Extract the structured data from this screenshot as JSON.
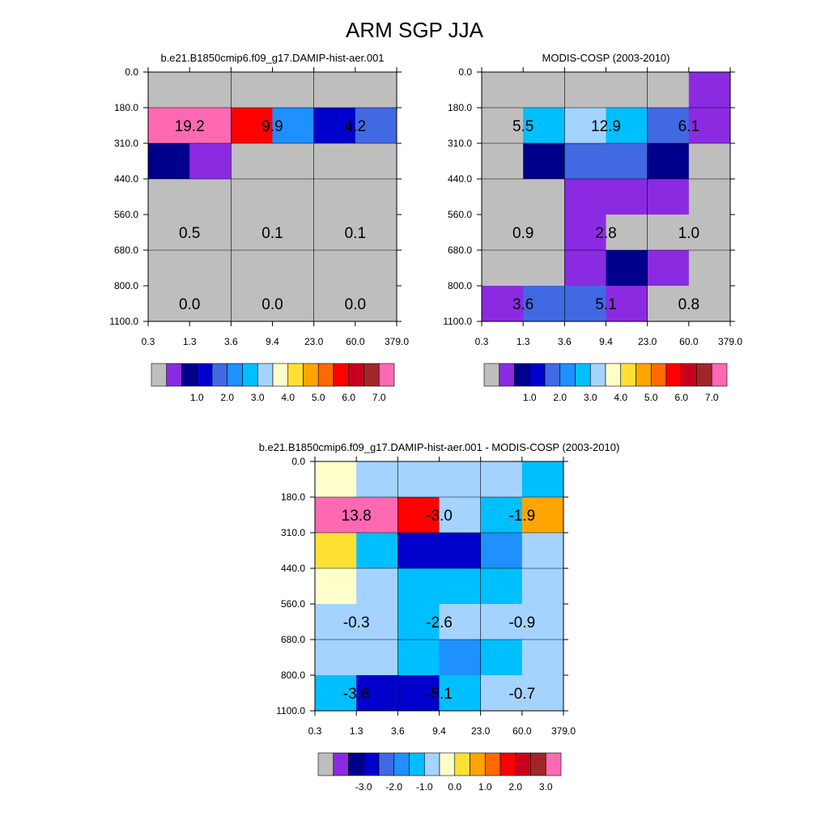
{
  "figure_title": "ARM SGP JJA",
  "colors": {
    "abs_scale": [
      "#bebebe",
      "#8a2be2",
      "#00008b",
      "#0000cd",
      "#4169e1",
      "#1e90ff",
      "#00bfff",
      "#a4d3ff",
      "#ffffcc",
      "#ffe135",
      "#ffa500",
      "#ff6a00",
      "#ff0000",
      "#c8001e",
      "#a0262a",
      "#ff69b4"
    ],
    "diff_scale": [
      "#bebebe",
      "#8a2be2",
      "#00008b",
      "#0000cd",
      "#4169e1",
      "#1e90ff",
      "#00bfff",
      "#a4d3ff",
      "#ffffcc",
      "#ffe135",
      "#ffa500",
      "#ff6a00",
      "#ff0000",
      "#c8001e",
      "#a0262a",
      "#ff69b4"
    ]
  },
  "chart_data": [
    {
      "type": "heatmap",
      "id": "model",
      "title": "b.e21.B1850cmip6.f09_g17.DAMIP-hist-aer.001",
      "x_ticks": [
        "0.3",
        "1.3",
        "3.6",
        "9.4",
        "23.0",
        "60.0",
        "379.0"
      ],
      "y_ticks": [
        "0.0",
        "180.0",
        "310.0",
        "440.0",
        "560.0",
        "680.0",
        "800.0",
        "1100.0"
      ],
      "cell_color_index": [
        [
          0,
          0,
          0,
          0,
          0,
          0
        ],
        [
          15,
          15,
          12,
          5,
          3,
          4
        ],
        [
          2,
          1,
          0,
          0,
          0,
          0
        ],
        [
          0,
          0,
          0,
          0,
          0,
          0
        ],
        [
          0,
          0,
          0,
          0,
          0,
          0
        ],
        [
          0,
          0,
          0,
          0,
          0,
          0
        ],
        [
          0,
          0,
          0,
          0,
          0,
          0
        ]
      ],
      "annotations": [
        {
          "text": "19.2",
          "row": 1,
          "col": 0.5
        },
        {
          "text": "9.9",
          "row": 1,
          "col": 2.5
        },
        {
          "text": "4.2",
          "row": 1,
          "col": 4.5
        },
        {
          "text": "0.5",
          "row": 4,
          "col": 0.5
        },
        {
          "text": "0.1",
          "row": 4,
          "col": 2.5
        },
        {
          "text": "0.1",
          "row": 4,
          "col": 4.5
        },
        {
          "text": "0.0",
          "row": 6,
          "col": 0.5
        },
        {
          "text": "0.0",
          "row": 6,
          "col": 2.5
        },
        {
          "text": "0.0",
          "row": 6,
          "col": 4.5
        }
      ],
      "colorbar_labels": [
        "1.0",
        "2.0",
        "3.0",
        "4.0",
        "5.0",
        "6.0",
        "7.0"
      ]
    },
    {
      "type": "heatmap",
      "id": "obs",
      "title": "MODIS-COSP (2003-2010)",
      "x_ticks": [
        "0.3",
        "1.3",
        "3.6",
        "9.4",
        "23.0",
        "60.0",
        "379.0"
      ],
      "y_ticks": [
        "0.0",
        "180.0",
        "310.0",
        "440.0",
        "560.0",
        "680.0",
        "800.0",
        "1100.0"
      ],
      "cell_color_index": [
        [
          0,
          0,
          0,
          0,
          0,
          1
        ],
        [
          0,
          6,
          7,
          6,
          4,
          1
        ],
        [
          0,
          2,
          4,
          4,
          2,
          0
        ],
        [
          0,
          0,
          1,
          1,
          1,
          0
        ],
        [
          0,
          0,
          1,
          0,
          0,
          0
        ],
        [
          0,
          0,
          1,
          2,
          1,
          0
        ],
        [
          1,
          4,
          4,
          1,
          0,
          0
        ]
      ],
      "annotations": [
        {
          "text": "5.5",
          "row": 1,
          "col": 0.5
        },
        {
          "text": "12.9",
          "row": 1,
          "col": 2.5
        },
        {
          "text": "6.1",
          "row": 1,
          "col": 4.5
        },
        {
          "text": "0.9",
          "row": 4,
          "col": 0.5
        },
        {
          "text": "2.8",
          "row": 4,
          "col": 2.5
        },
        {
          "text": "1.0",
          "row": 4,
          "col": 4.5
        },
        {
          "text": "3.6",
          "row": 6,
          "col": 0.5
        },
        {
          "text": "5.1",
          "row": 6,
          "col": 2.5
        },
        {
          "text": "0.8",
          "row": 6,
          "col": 4.5
        }
      ],
      "colorbar_labels": [
        "1.0",
        "2.0",
        "3.0",
        "4.0",
        "5.0",
        "6.0",
        "7.0"
      ]
    },
    {
      "type": "heatmap",
      "id": "diff",
      "title": "b.e21.B1850cmip6.f09_g17.DAMIP-hist-aer.001 - MODIS-COSP (2003-2010)",
      "x_ticks": [
        "0.3",
        "1.3",
        "3.6",
        "9.4",
        "23.0",
        "60.0",
        "379.0"
      ],
      "y_ticks": [
        "0.0",
        "180.0",
        "310.0",
        "440.0",
        "560.0",
        "680.0",
        "800.0",
        "1100.0"
      ],
      "cell_color_index": [
        [
          8,
          7,
          7,
          7,
          7,
          6
        ],
        [
          15,
          15,
          12,
          7,
          6,
          10
        ],
        [
          9,
          6,
          3,
          3,
          5,
          7
        ],
        [
          8,
          7,
          6,
          6,
          6,
          7
        ],
        [
          7,
          7,
          6,
          7,
          7,
          7
        ],
        [
          7,
          7,
          6,
          5,
          6,
          7
        ],
        [
          6,
          3,
          3,
          6,
          7,
          7
        ]
      ],
      "annotations": [
        {
          "text": "13.8",
          "row": 1,
          "col": 0.5
        },
        {
          "text": "-3.0",
          "row": 1,
          "col": 2.5
        },
        {
          "text": "-1.9",
          "row": 1,
          "col": 4.5
        },
        {
          "text": "-0.3",
          "row": 4,
          "col": 0.5
        },
        {
          "text": "-2.6",
          "row": 4,
          "col": 2.5
        },
        {
          "text": "-0.9",
          "row": 4,
          "col": 4.5
        },
        {
          "text": "-3.6",
          "row": 6,
          "col": 0.5
        },
        {
          "text": "-5.1",
          "row": 6,
          "col": 2.5
        },
        {
          "text": "-0.7",
          "row": 6,
          "col": 4.5
        }
      ],
      "colorbar_labels": [
        "-3.0",
        "-2.0",
        "-1.0",
        "0.0",
        "1.0",
        "2.0",
        "3.0"
      ]
    }
  ]
}
